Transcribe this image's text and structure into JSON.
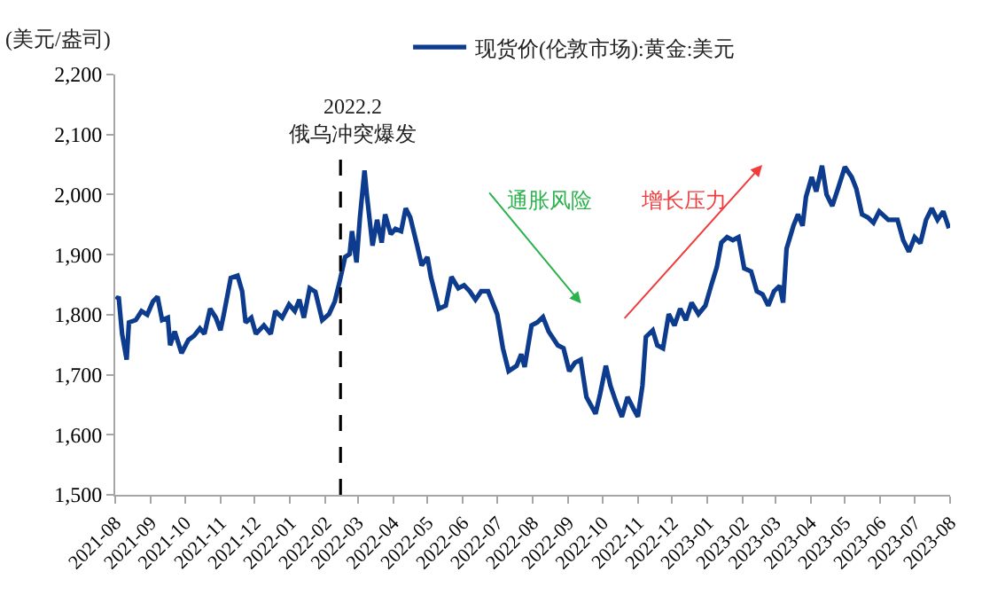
{
  "chart_data": {
    "type": "line",
    "ylabel": "(美元/盎司)",
    "legend": "top",
    "marker": "none",
    "line_style": "solid",
    "annotations": [
      "通胀风险",
      "增长压力"
    ],
    "ref_lines": [
      {
        "axis": "x",
        "value": "2022-02-14",
        "label": "2022.2\n俄乌冲突爆发",
        "color": "#000000",
        "line_style": "dashed"
      }
    ],
    "xlim": [
      "2021-08",
      "2023-08"
    ],
    "xticks": [
      "2021-08",
      "2021-09",
      "2021-10",
      "2021-11",
      "2021-12",
      "2022-01",
      "2022-02",
      "2022-03",
      "2022-04",
      "2022-05",
      "2022-06",
      "2022-07",
      "2022-08",
      "2022-09",
      "2022-10",
      "2022-11",
      "2022-12",
      "2023-01",
      "2023-02",
      "2023-03",
      "2023-04",
      "2023-05",
      "2023-06",
      "2023-07",
      "2023-08"
    ],
    "ylim": [
      1500,
      2200
    ],
    "yticks": [
      {
        "value": 1500,
        "label": "1,500"
      },
      {
        "value": 1600,
        "label": "1,600"
      },
      {
        "value": 1700,
        "label": "1,700"
      },
      {
        "value": 1800,
        "label": "1,800"
      },
      {
        "value": 1900,
        "label": "1,900"
      },
      {
        "value": 2000,
        "label": "2,000"
      },
      {
        "value": 2100,
        "label": "2,100"
      },
      {
        "value": 2200,
        "label": "2,200"
      }
    ],
    "series": [
      {
        "name": "现货价(伦敦市场):黄金:美元",
        "color": "#0d3b8e",
        "x": [
          "2021-08-02",
          "2021-08-04",
          "2021-08-07",
          "2021-08-11",
          "2021-08-13",
          "2021-08-19",
          "2021-08-24",
          "2021-08-29",
          "2021-09-03",
          "2021-09-07",
          "2021-09-11",
          "2021-09-16",
          "2021-09-18",
          "2021-09-22",
          "2021-09-28",
          "2021-10-04",
          "2021-10-09",
          "2021-10-14",
          "2021-10-18",
          "2021-10-23",
          "2021-10-28",
          "2021-11-01",
          "2021-11-04",
          "2021-11-10",
          "2021-11-16",
          "2021-11-20",
          "2021-11-23",
          "2021-11-28",
          "2021-12-02",
          "2021-12-09",
          "2021-12-15",
          "2021-12-19",
          "2021-12-25",
          "2021-12-31",
          "2022-01-05",
          "2022-01-09",
          "2022-01-13",
          "2022-01-18",
          "2022-01-23",
          "2022-01-29",
          "2022-02-04",
          "2022-02-09",
          "2022-02-13",
          "2022-02-18",
          "2022-02-22",
          "2022-02-24",
          "2022-02-28",
          "2022-03-03",
          "2022-03-07",
          "2022-03-09",
          "2022-03-14",
          "2022-03-18",
          "2022-03-22",
          "2022-03-25",
          "2022-03-30",
          "2022-04-03",
          "2022-04-08",
          "2022-04-12",
          "2022-04-16",
          "2022-04-22",
          "2022-04-26",
          "2022-05-01",
          "2022-05-04",
          "2022-05-11",
          "2022-05-17",
          "2022-05-22",
          "2022-05-28",
          "2022-06-02",
          "2022-06-07",
          "2022-06-12",
          "2022-06-17",
          "2022-06-23",
          "2022-07-01",
          "2022-07-06",
          "2022-07-11",
          "2022-07-18",
          "2022-07-22",
          "2022-07-25",
          "2022-07-31",
          "2022-08-05",
          "2022-08-10",
          "2022-08-15",
          "2022-08-23",
          "2022-08-28",
          "2022-09-02",
          "2022-09-07",
          "2022-09-12",
          "2022-09-17",
          "2022-09-25",
          "2022-09-29",
          "2022-10-04",
          "2022-10-08",
          "2022-10-13",
          "2022-10-18",
          "2022-10-23",
          "2022-10-28",
          "2022-11-01",
          "2022-11-05",
          "2022-11-08",
          "2022-11-14",
          "2022-11-18",
          "2022-11-23",
          "2022-11-28",
          "2022-12-03",
          "2022-12-08",
          "2022-12-13",
          "2022-12-18",
          "2022-12-24",
          "2022-12-30",
          "2023-01-04",
          "2023-01-09",
          "2023-01-13",
          "2023-01-18",
          "2023-01-23",
          "2023-01-28",
          "2023-02-02",
          "2023-02-08",
          "2023-02-13",
          "2023-02-18",
          "2023-02-23",
          "2023-02-28",
          "2023-03-05",
          "2023-03-08",
          "2023-03-11",
          "2023-03-17",
          "2023-03-21",
          "2023-03-25",
          "2023-03-28",
          "2023-04-02",
          "2023-04-06",
          "2023-04-11",
          "2023-04-15",
          "2023-04-20",
          "2023-04-25",
          "2023-05-01",
          "2023-05-07",
          "2023-05-11",
          "2023-05-16",
          "2023-05-21",
          "2023-05-26",
          "2023-05-31",
          "2023-06-08",
          "2023-06-16",
          "2023-06-21",
          "2023-06-26",
          "2023-07-01",
          "2023-07-06",
          "2023-07-11",
          "2023-07-16",
          "2023-07-21",
          "2023-07-26",
          "2023-07-31"
        ],
        "values": [
          1825,
          1830,
          1768,
          1725,
          1787,
          1791,
          1806,
          1800,
          1822,
          1830,
          1791,
          1795,
          1749,
          1772,
          1736,
          1758,
          1765,
          1777,
          1768,
          1810,
          1795,
          1774,
          1801,
          1861,
          1865,
          1839,
          1787,
          1795,
          1768,
          1782,
          1768,
          1806,
          1795,
          1817,
          1806,
          1825,
          1795,
          1844,
          1838,
          1791,
          1801,
          1822,
          1853,
          1896,
          1901,
          1939,
          1887,
          1962,
          2040,
          2000,
          1915,
          1958,
          1920,
          1967,
          1934,
          1943,
          1939,
          1977,
          1962,
          1915,
          1882,
          1896,
          1863,
          1810,
          1815,
          1863,
          1844,
          1849,
          1839,
          1825,
          1839,
          1839,
          1801,
          1744,
          1706,
          1715,
          1734,
          1713,
          1782,
          1787,
          1796,
          1772,
          1749,
          1744,
          1706,
          1720,
          1725,
          1663,
          1635,
          1668,
          1715,
          1682,
          1654,
          1630,
          1663,
          1644,
          1630,
          1682,
          1763,
          1774,
          1749,
          1744,
          1801,
          1782,
          1810,
          1791,
          1820,
          1801,
          1815,
          1848,
          1879,
          1920,
          1929,
          1924,
          1929,
          1877,
          1872,
          1839,
          1834,
          1815,
          1839,
          1848,
          1820,
          1910,
          1948,
          1967,
          1948,
          1996,
          2029,
          2005,
          2048,
          2000,
          1981,
          2010,
          2046,
          2029,
          2010,
          1967,
          1962,
          1953,
          1972,
          1958,
          1958,
          1924,
          1905,
          1929,
          1919,
          1958,
          1977,
          1958,
          1972,
          1944
        ]
      }
    ]
  }
}
